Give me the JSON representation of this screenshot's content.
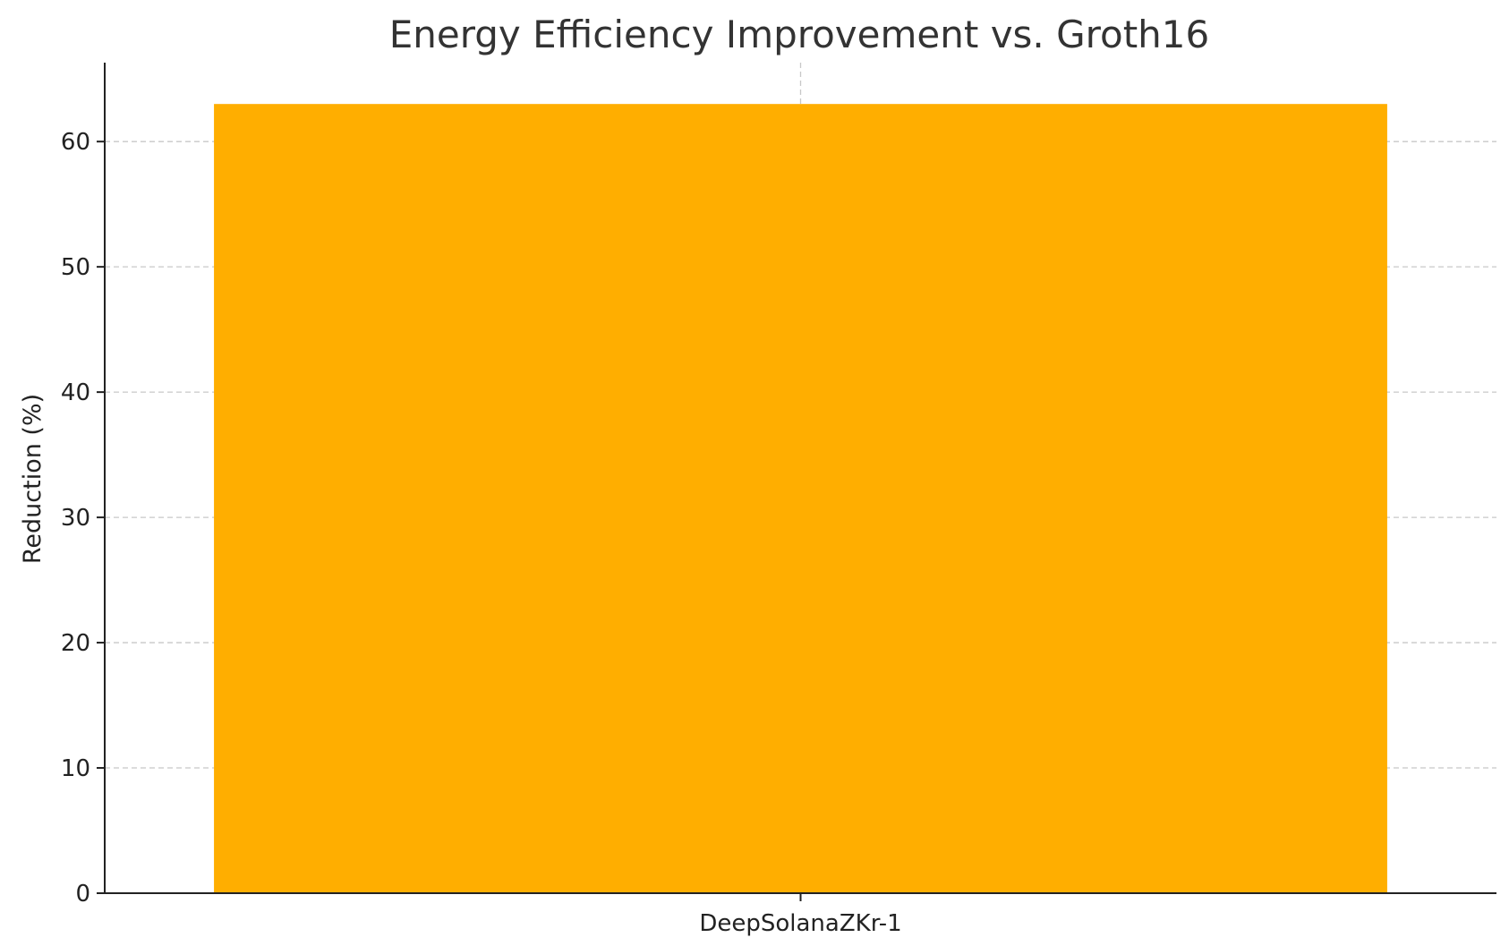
{
  "chart_data": {
    "type": "bar",
    "title": "Energy Efficiency Improvement vs. Groth16",
    "xlabel": "",
    "ylabel": "Reduction (%)",
    "categories": [
      "DeepSolanaZKr-1"
    ],
    "values": [
      63
    ],
    "ylim": [
      0,
      66.3
    ],
    "yticks": [
      0,
      10,
      20,
      30,
      40,
      50,
      60
    ],
    "grid": true,
    "bar_color": "#FFAE00"
  }
}
